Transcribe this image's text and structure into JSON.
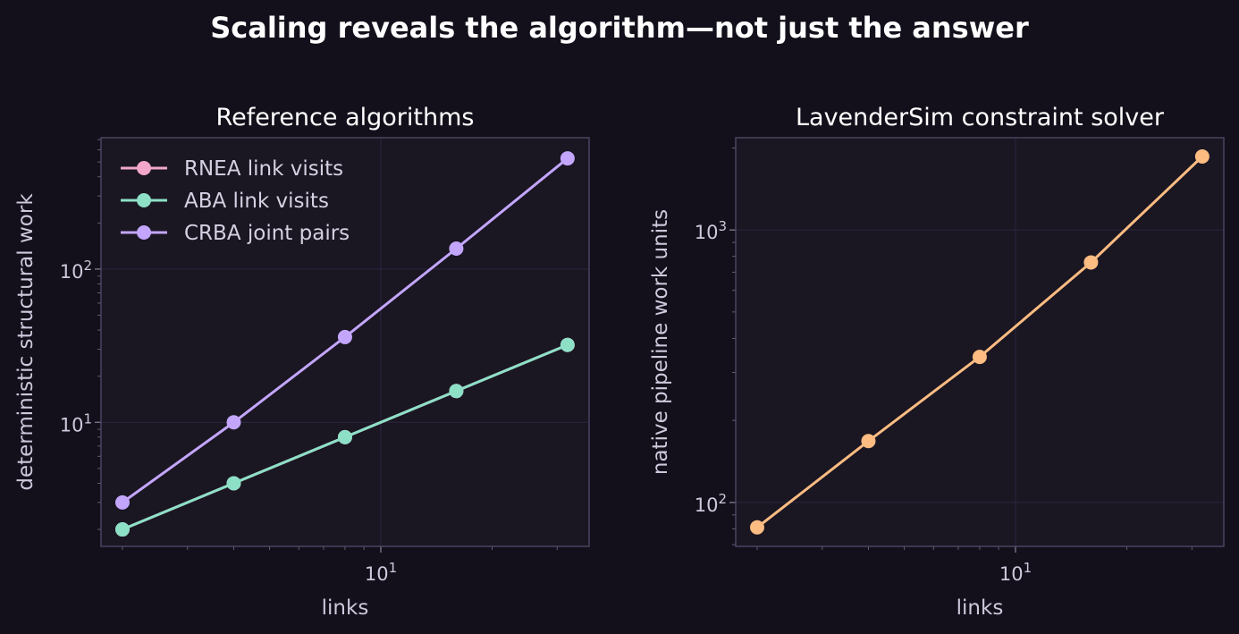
{
  "suptitle": "Scaling reveals the algorithm—not just the answer",
  "colors": {
    "background": "#13101b",
    "panel": "#1a1622",
    "rnea": "#f2a7c9",
    "aba": "#8de0c6",
    "crba": "#c3a6fc",
    "lavendersim": "#fcbc82"
  },
  "chart_data": [
    {
      "type": "line",
      "title": "Reference algorithms",
      "xlabel": "links",
      "ylabel": "deterministic structural work",
      "xscale": "log",
      "yscale": "log",
      "grid": true,
      "legend": "top-left",
      "xlim": [
        1.75,
        36.6
      ],
      "ylim": [
        1.55,
        720
      ],
      "x": [
        2,
        4,
        8,
        16,
        32
      ],
      "xtick_labels": [
        {
          "base": "10",
          "exp": "1",
          "value": 10
        }
      ],
      "ytick_labels": [
        {
          "base": "10",
          "exp": "1",
          "value": 10
        },
        {
          "base": "10",
          "exp": "2",
          "value": 100
        }
      ],
      "series": [
        {
          "name": "RNEA link visits",
          "color": "#f2a7c9",
          "values": [
            2,
            4,
            8,
            16,
            32
          ]
        },
        {
          "name": "ABA link visits",
          "color": "#8de0c6",
          "values": [
            2,
            4,
            8,
            16,
            32
          ]
        },
        {
          "name": "CRBA joint pairs",
          "color": "#c3a6fc",
          "values": [
            3,
            10,
            36,
            136,
            528
          ]
        }
      ]
    },
    {
      "type": "line",
      "title": "LavenderSim constraint solver",
      "xlabel": "links",
      "ylabel": "native pipeline work units",
      "xscale": "log",
      "yscale": "log",
      "grid": true,
      "xlim": [
        1.75,
        36.6
      ],
      "ylim": [
        69,
        2180
      ],
      "x": [
        2,
        4,
        8,
        16,
        32
      ],
      "xtick_labels": [
        {
          "base": "10",
          "exp": "1",
          "value": 10
        }
      ],
      "ytick_labels": [
        {
          "base": "10",
          "exp": "2",
          "value": 100
        },
        {
          "base": "10",
          "exp": "3",
          "value": 1000
        }
      ],
      "series": [
        {
          "name": "",
          "color": "#fcbc82",
          "values": [
            81,
            168,
            342,
            760,
            1860
          ]
        }
      ]
    }
  ]
}
